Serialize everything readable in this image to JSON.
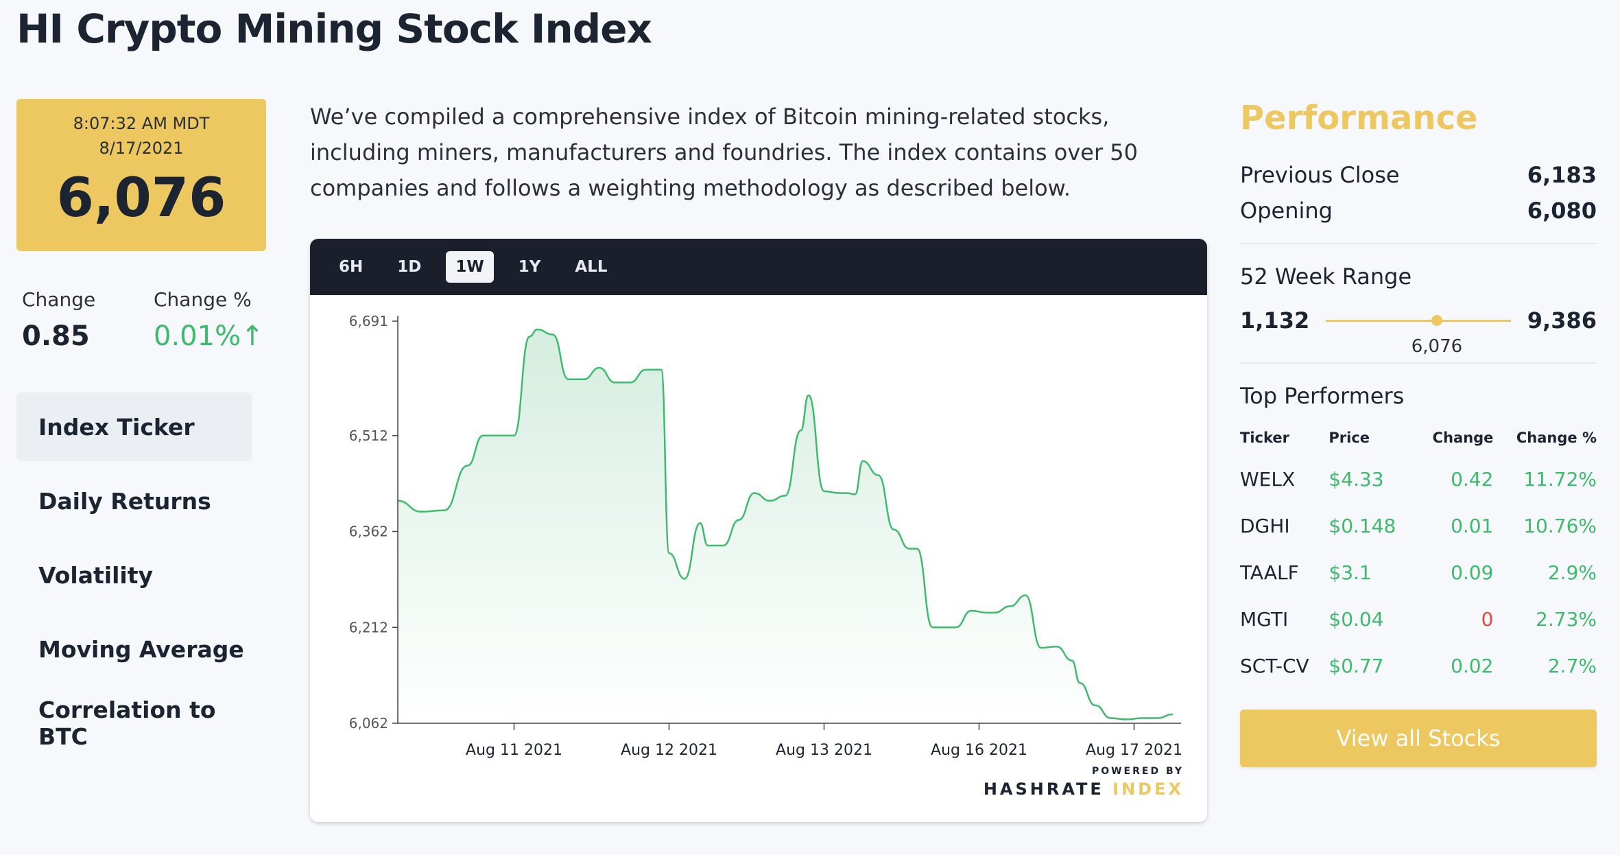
{
  "page": {
    "title": "HI Crypto Mining Stock Index"
  },
  "price_box": {
    "time": "8:07:32 AM MDT",
    "date": "8/17/2021",
    "value": "6,076"
  },
  "change": {
    "label": "Change",
    "value": "0.85",
    "pct_label": "Change %",
    "pct_value": "0.01%↑"
  },
  "nav": {
    "items": [
      {
        "label": "Index Ticker",
        "active": true
      },
      {
        "label": "Daily Returns"
      },
      {
        "label": "Volatility"
      },
      {
        "label": "Moving Average"
      },
      {
        "label": "Correlation to BTC"
      }
    ]
  },
  "intro": {
    "text": "We’ve compiled a comprehensive index of Bitcoin mining-related stocks, including miners, manufacturers and foundries. The index contains over 50 companies and follows a weighting methodology as described below."
  },
  "chart_toolbar": {
    "ranges": [
      "6H",
      "1D",
      "1W",
      "1Y",
      "ALL"
    ],
    "active": "1W"
  },
  "powered": {
    "by": "POWERED BY",
    "name_a": "HASHRATE ",
    "name_b": "INDEX"
  },
  "chart_data": {
    "type": "area",
    "title": "",
    "xlabel": "",
    "ylabel": "",
    "y_ticks": [
      6062,
      6212,
      6362,
      6512,
      6691
    ],
    "y_tick_labels": [
      "6,062",
      "6,212",
      "6,362",
      "6,512",
      "6,691"
    ],
    "x_tick_labels": [
      "Aug 11 2021",
      "Aug 12 2021",
      "Aug 13 2021",
      "Aug 16 2021",
      "Aug 17 2021"
    ],
    "ylim": [
      6062,
      6691
    ],
    "xlim": [
      0,
      100
    ],
    "grid": false,
    "line_color": "#3dbb6d",
    "fill_color": "#d5eddf",
    "series": [
      {
        "x": [
          0,
          3,
          6,
          9,
          11,
          13,
          15,
          17,
          18,
          20,
          22,
          24,
          26,
          28,
          30,
          32,
          34,
          35,
          37,
          39,
          40,
          42,
          44,
          46,
          48,
          50,
          52,
          53,
          55,
          57,
          58,
          59,
          60,
          62,
          64,
          66,
          67,
          69,
          72,
          74,
          76,
          77,
          79,
          81,
          83,
          85,
          87,
          88,
          90,
          92,
          94,
          96,
          97,
          98,
          100
        ],
        "y": [
          6410,
          6393,
          6395,
          6465,
          6512,
          6512,
          6512,
          6667,
          6678,
          6670,
          6600,
          6600,
          6618,
          6595,
          6595,
          6615,
          6615,
          6328,
          6288,
          6375,
          6340,
          6340,
          6380,
          6422,
          6410,
          6418,
          6520,
          6575,
          6425,
          6422,
          6422,
          6420,
          6472,
          6450,
          6365,
          6335,
          6335,
          6212,
          6212,
          6238,
          6235,
          6235,
          6245,
          6262,
          6180,
          6182,
          6160,
          6125,
          6090,
          6070,
          6068,
          6070,
          6070,
          6070,
          6076
        ]
      }
    ],
    "x_tick_positions": [
      15,
      35,
      55,
      75,
      95
    ]
  },
  "performance": {
    "title": "Performance",
    "prev_close_label": "Previous Close",
    "prev_close": "6,183",
    "opening_label": "Opening",
    "opening": "6,080",
    "range_label": "52 Week Range",
    "range_low": "1,132",
    "range_high": "9,386",
    "range_current": "6,076",
    "range_fraction": 0.6
  },
  "top_performers": {
    "title": "Top Performers",
    "headers": [
      "Ticker",
      "Price",
      "Change",
      "Change %"
    ],
    "rows": [
      {
        "ticker": "WELX",
        "price": "$4.33",
        "change": "0.42",
        "pct": "11.72%",
        "up": true
      },
      {
        "ticker": "DGHI",
        "price": "$0.148",
        "change": "0.01",
        "pct": "10.76%",
        "up": true
      },
      {
        "ticker": "TAALF",
        "price": "$3.1",
        "change": "0.09",
        "pct": "2.9%",
        "up": true
      },
      {
        "ticker": "MGTI",
        "price": "$0.04",
        "change": "0",
        "pct": "2.73%",
        "up": false
      },
      {
        "ticker": "SCT-CV",
        "price": "$0.77",
        "change": "0.02",
        "pct": "2.7%",
        "up": true
      }
    ],
    "button": "View all Stocks"
  },
  "colors": {
    "accent": "#edc760",
    "positive": "#3dbb6d",
    "negative": "#e0483f",
    "dark": "#1a1f2b"
  }
}
